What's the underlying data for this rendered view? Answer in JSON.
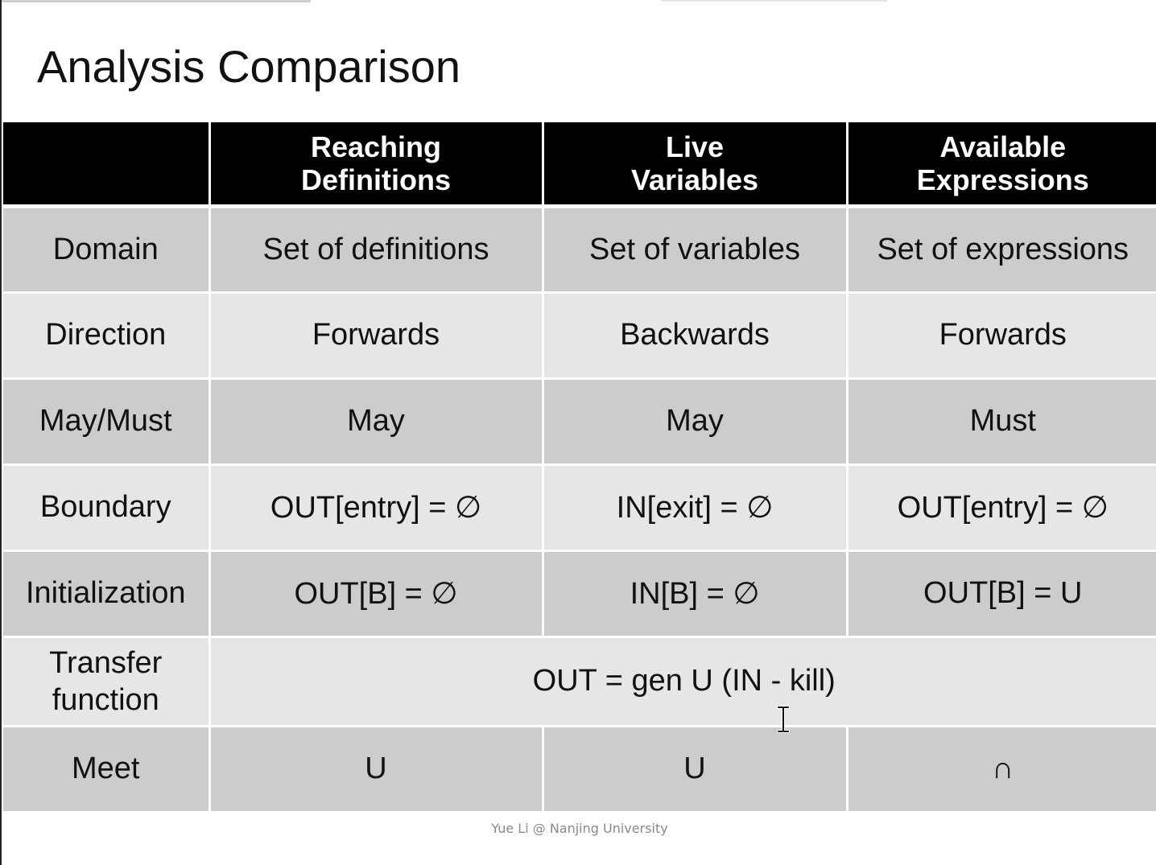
{
  "slide": {
    "title": "Analysis Comparison",
    "footer": "Yue Li @ Nanjing University"
  },
  "table": {
    "header": {
      "corner": "",
      "reaching_definitions": [
        "Reaching",
        "Definitions"
      ],
      "live_variables": [
        "Live",
        "Variables"
      ],
      "available_expressions": [
        "Available",
        "Expressions"
      ]
    },
    "rows": {
      "domain": {
        "label": "Domain",
        "reaching": "Set of definitions",
        "live": "Set of variables",
        "available": "Set of expressions"
      },
      "direction": {
        "label": "Direction",
        "reaching": "Forwards",
        "live": "Backwards",
        "available": "Forwards"
      },
      "may_must": {
        "label": "May/Must",
        "reaching": "May",
        "live": "May",
        "available": "Must"
      },
      "boundary": {
        "label": "Boundary",
        "reaching": "OUT[entry] = ∅",
        "live": "IN[exit] = ∅",
        "available": "OUT[entry] = ∅"
      },
      "initialization": {
        "label": "Initialization",
        "reaching": "OUT[B] = ∅",
        "live": "IN[B] = ∅",
        "available": "OUT[B] = U"
      },
      "transfer_function": {
        "label": [
          "Transfer",
          "function"
        ],
        "shared": "OUT = gen U (IN - kill)"
      },
      "meet": {
        "label": "Meet",
        "reaching": "U",
        "live": "U",
        "available": "∩"
      }
    }
  },
  "cursor": {
    "icon": "text-cursor-icon"
  }
}
